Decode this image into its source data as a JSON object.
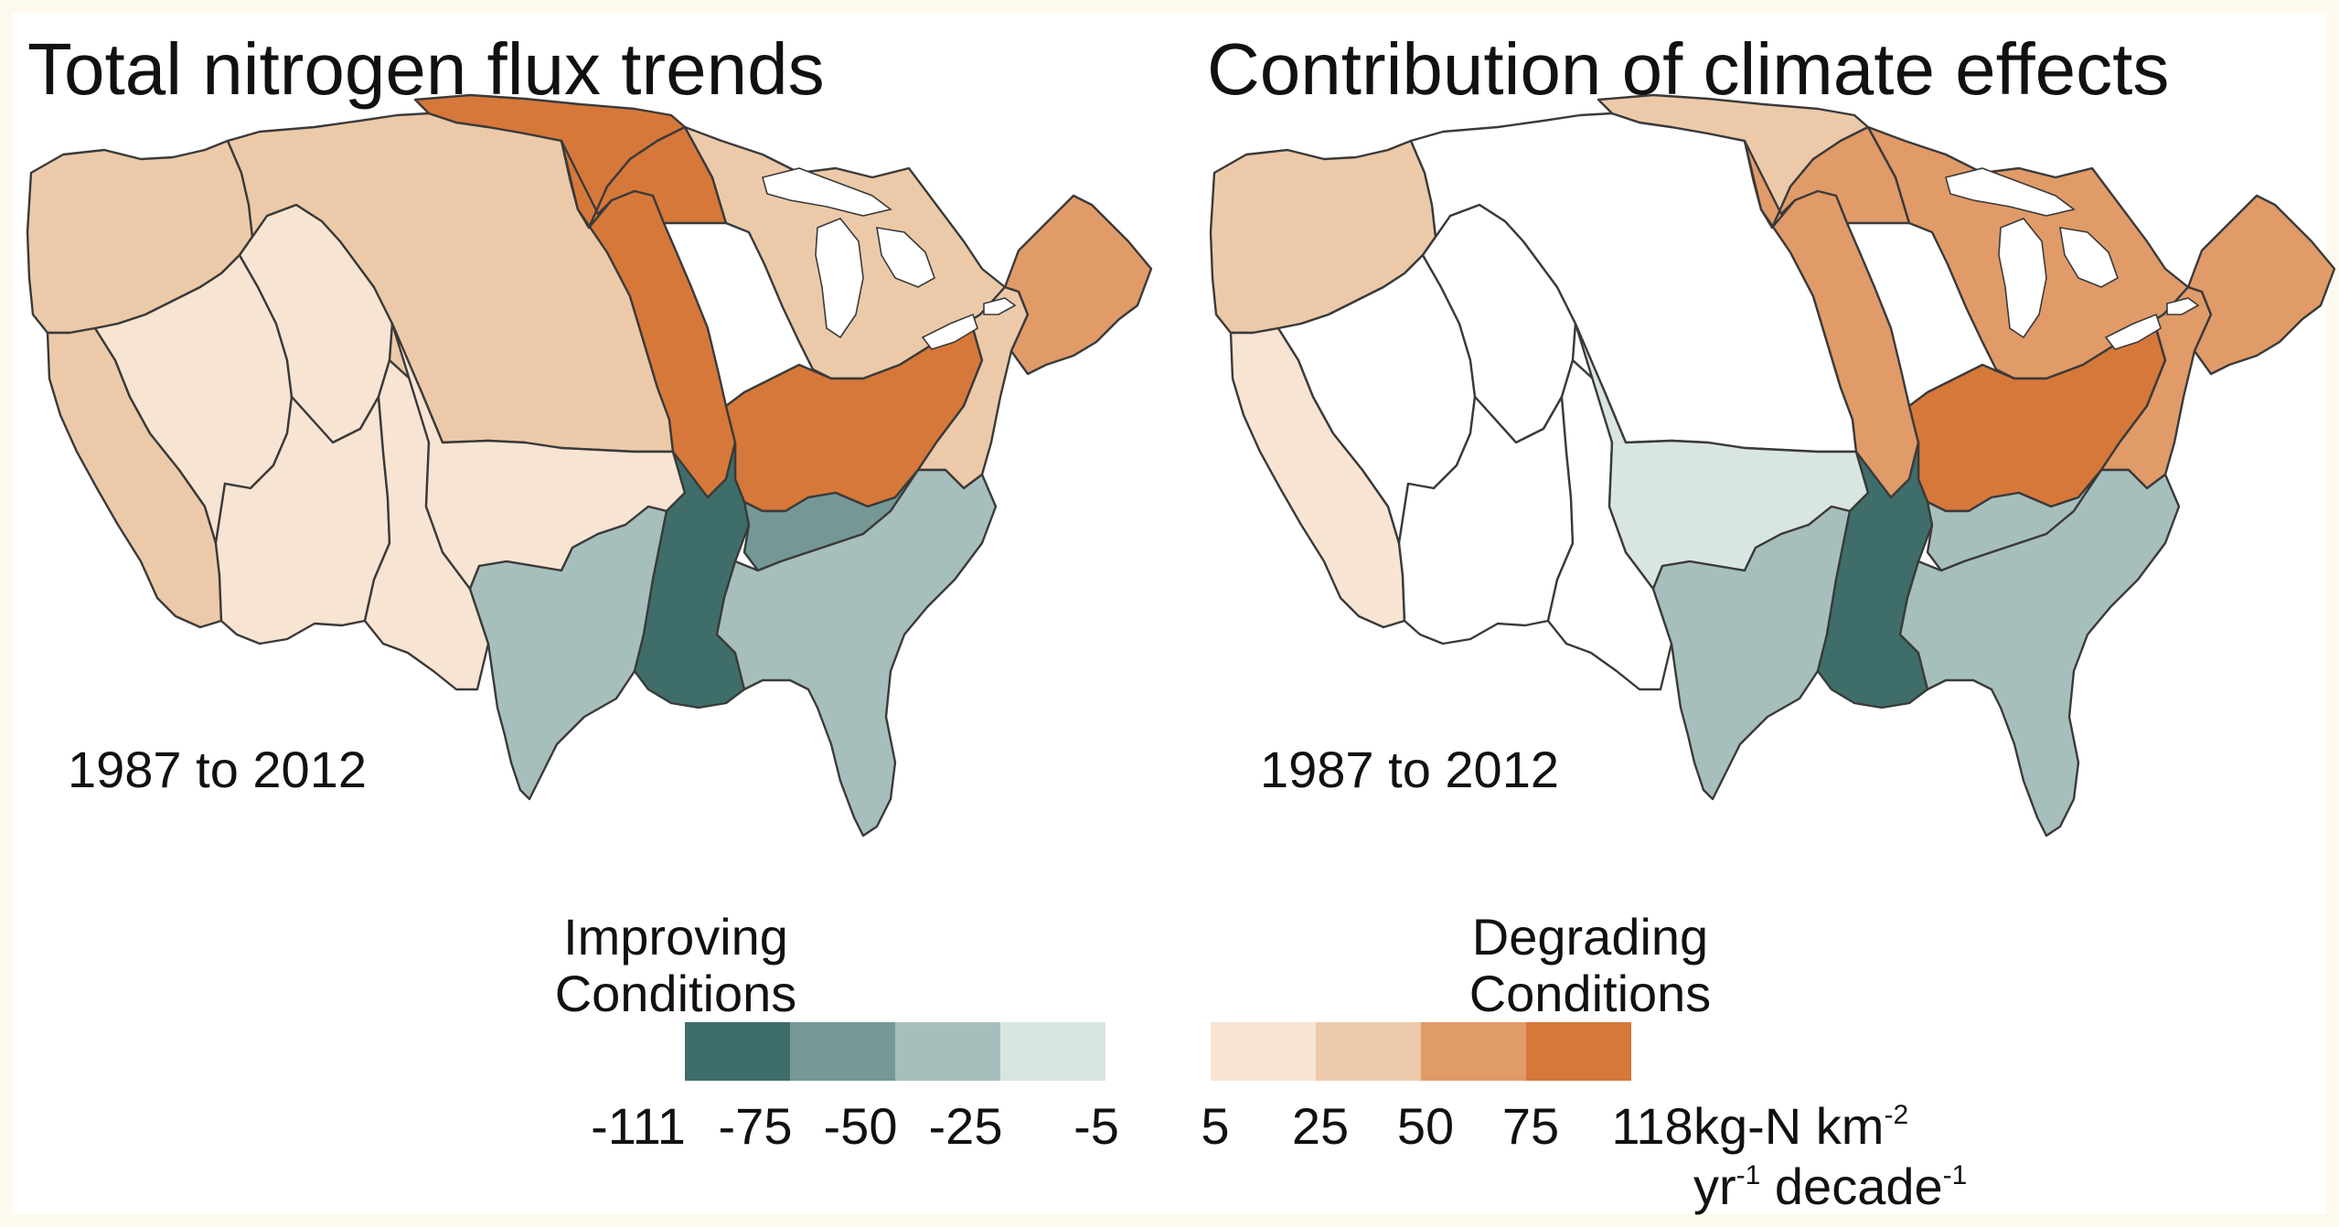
{
  "maps": [
    {
      "title": "Total nitrogen flux trends",
      "period": "1987 to 2012",
      "regions": [
        {
          "name": "Pacific Northwest",
          "class": 6
        },
        {
          "name": "California",
          "class": 6
        },
        {
          "name": "Great Basin",
          "class": 5
        },
        {
          "name": "Upper Colorado",
          "class": 5
        },
        {
          "name": "Lower Colorado",
          "class": 5
        },
        {
          "name": "Rio Grande",
          "class": 5
        },
        {
          "name": "Missouri",
          "class": 6
        },
        {
          "name": "Souris-Red-Rainy",
          "class": 8
        },
        {
          "name": "Upper Mississippi",
          "class": 8
        },
        {
          "name": "Great Lakes",
          "class": 6
        },
        {
          "name": "Ohio",
          "class": 8
        },
        {
          "name": "Mid-Atlantic",
          "class": 6
        },
        {
          "name": "New England",
          "class": 7
        },
        {
          "name": "Arkansas-White-Red",
          "class": 5
        },
        {
          "name": "Texas-Gulf",
          "class": 2
        },
        {
          "name": "Lower Mississippi",
          "class": 0
        },
        {
          "name": "Tennessee",
          "class": 1
        },
        {
          "name": "South Atlantic-Gulf",
          "class": 2
        }
      ]
    },
    {
      "title": "Contribution of climate effects",
      "period": "1987 to 2012",
      "regions": [
        {
          "name": "Pacific Northwest",
          "class": 6
        },
        {
          "name": "California",
          "class": 5
        },
        {
          "name": "Great Basin",
          "class": 4
        },
        {
          "name": "Upper Colorado",
          "class": 4
        },
        {
          "name": "Lower Colorado",
          "class": 4
        },
        {
          "name": "Rio Grande",
          "class": 4
        },
        {
          "name": "Missouri",
          "class": 4
        },
        {
          "name": "Souris-Red-Rainy",
          "class": 6
        },
        {
          "name": "Upper Mississippi",
          "class": 7
        },
        {
          "name": "Great Lakes",
          "class": 7
        },
        {
          "name": "Ohio",
          "class": 8
        },
        {
          "name": "Mid-Atlantic",
          "class": 7
        },
        {
          "name": "New England",
          "class": 7
        },
        {
          "name": "Arkansas-White-Red",
          "class": 3
        },
        {
          "name": "Texas-Gulf",
          "class": 2
        },
        {
          "name": "Lower Mississippi",
          "class": 0
        },
        {
          "name": "Tennessee",
          "class": 2
        },
        {
          "name": "South Atlantic-Gulf",
          "class": 2
        }
      ]
    }
  ],
  "legend": {
    "improving_label": "Improving Conditions",
    "degrading_label": "Degrading Conditions",
    "ticks": [
      "-111",
      "-75",
      "-50",
      "-25",
      "-5",
      "5",
      "25",
      "50",
      "75",
      "118"
    ],
    "unit_line1": "kg-N km",
    "unit_line1_sup": "-2",
    "unit_line2_a": "yr",
    "unit_line2_sup_a": "-1",
    "unit_line2_b": " decade",
    "unit_line2_sup_b": "-1",
    "bins": [
      {
        "range": [
          -111,
          -75
        ],
        "color": "#3f6e6a"
      },
      {
        "range": [
          -75,
          -50
        ],
        "color": "#759896"
      },
      {
        "range": [
          -50,
          -25
        ],
        "color": "#a7bfbc"
      },
      {
        "range": [
          -25,
          -5
        ],
        "color": "#d9e5e1"
      },
      {
        "range": [
          -5,
          5
        ],
        "color": "#ffffff"
      },
      {
        "range": [
          5,
          25
        ],
        "color": "#f8e4d2"
      },
      {
        "range": [
          25,
          50
        ],
        "color": "#eccaa9"
      },
      {
        "range": [
          50,
          75
        ],
        "color": "#e09b69"
      },
      {
        "range": [
          75,
          118
        ],
        "color": "#d6783a"
      }
    ]
  }
}
